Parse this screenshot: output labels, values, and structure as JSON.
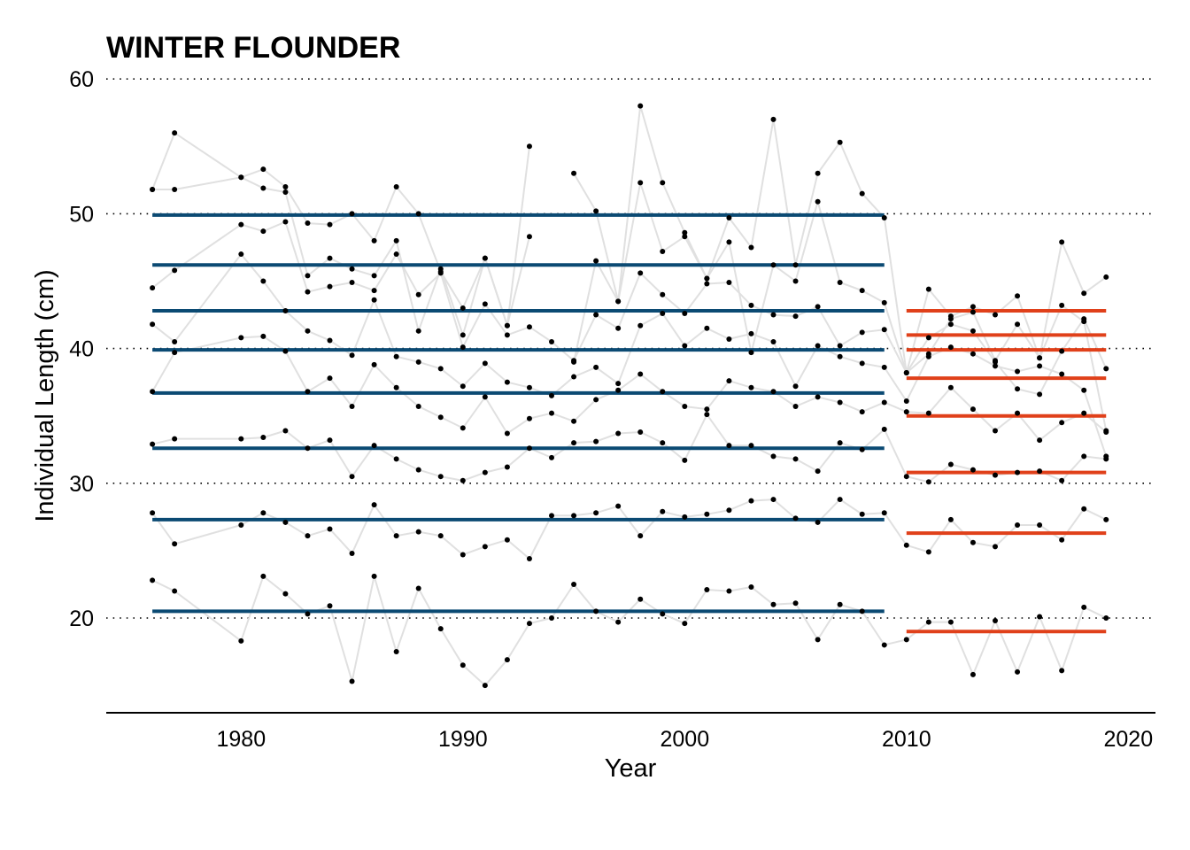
{
  "chart_data": {
    "type": "line",
    "title": "WINTER FLOUNDER",
    "xlabel": "Year",
    "ylabel": "Individual Length (cm)",
    "xlim": [
      1974,
      2021
    ],
    "ylim": [
      13,
      60
    ],
    "x_ticks": [
      1980,
      1990,
      2000,
      2010,
      2020
    ],
    "y_ticks": [
      20,
      30,
      40,
      50,
      60
    ],
    "grid": "horizontal dotted at y ticks",
    "colors": {
      "line": "#e0e0e0",
      "point": "#000000",
      "period1_mean": "#0b4a73",
      "period2_mean": "#e0401a",
      "grid": "#000000"
    },
    "series": [
      {
        "x": [
          1976,
          1977,
          1980,
          1981,
          1982,
          1983,
          1984,
          1985,
          1986,
          1987,
          1988,
          1989,
          1990,
          1991,
          1992,
          1993,
          1994,
          1995,
          1996,
          1997,
          1998,
          1999,
          2000,
          2001,
          2002,
          2003,
          2004,
          2005,
          2006,
          2007,
          2008,
          2009,
          2010,
          2011,
          2012,
          2013,
          2014,
          2015,
          2016,
          2017,
          2018,
          2019
        ],
        "y": [
          22.8,
          22.0,
          18.3,
          23.1,
          21.8,
          20.3,
          20.9,
          15.3,
          23.1,
          17.5,
          22.2,
          19.2,
          16.5,
          15.0,
          16.9,
          19.6,
          20.0,
          22.5,
          20.5,
          19.7,
          21.4,
          20.3,
          19.6,
          22.1,
          22.0,
          22.3,
          21.0,
          21.1,
          18.4,
          21.0,
          20.5,
          18.0,
          18.4,
          19.7,
          19.7,
          15.8,
          19.8,
          16.0,
          20.1,
          16.1,
          20.8,
          20.0
        ]
      },
      {
        "x": [
          1976,
          1977,
          1980,
          1981,
          1982,
          1983,
          1984,
          1985,
          1986,
          1987,
          1988,
          1989,
          1990,
          1991,
          1992,
          1993,
          1994,
          1995,
          1996,
          1997,
          1998,
          1999,
          2000,
          2001,
          2002,
          2003,
          2004,
          2005,
          2006,
          2007,
          2008,
          2009,
          2010,
          2011,
          2012,
          2013,
          2014,
          2015,
          2016,
          2017,
          2018,
          2019
        ],
        "y": [
          27.8,
          25.5,
          26.9,
          27.8,
          27.1,
          26.1,
          26.6,
          24.8,
          28.4,
          26.1,
          26.4,
          26.1,
          24.7,
          25.3,
          25.8,
          24.4,
          27.6,
          27.6,
          27.8,
          28.3,
          26.1,
          27.9,
          27.5,
          27.7,
          28.0,
          28.7,
          28.8,
          27.4,
          27.1,
          28.8,
          27.7,
          27.8,
          25.4,
          24.9,
          27.3,
          25.6,
          25.3,
          26.9,
          26.9,
          25.8,
          28.1,
          27.3
        ]
      },
      {
        "x": [
          1976,
          1977,
          1980,
          1981,
          1982,
          1983,
          1984,
          1985,
          1986,
          1987,
          1988,
          1989,
          1990,
          1991,
          1992,
          1993,
          1994,
          1995,
          1996,
          1997,
          1998,
          1999,
          2000,
          2001,
          2002,
          2003,
          2004,
          2005,
          2006,
          2007,
          2008,
          2009,
          2010,
          2011,
          2012,
          2013,
          2014,
          2015,
          2016,
          2017,
          2018,
          2019
        ],
        "y": [
          32.9,
          33.3,
          33.3,
          33.4,
          33.9,
          32.6,
          33.2,
          30.5,
          32.8,
          31.8,
          31.0,
          30.5,
          30.2,
          30.8,
          31.2,
          32.6,
          31.9,
          33.0,
          33.1,
          33.7,
          33.8,
          33.0,
          31.7,
          35.1,
          32.8,
          32.8,
          32.0,
          31.8,
          30.9,
          33.0,
          32.5,
          34.0,
          30.5,
          30.1,
          31.4,
          31.0,
          30.6,
          30.8,
          30.9,
          30.2,
          32.0,
          31.8
        ]
      },
      {
        "x": [
          1976,
          1977,
          1980,
          1981,
          1982,
          1983,
          1984,
          1985,
          1986,
          1987,
          1988,
          1989,
          1990,
          1991,
          1992,
          1993,
          1994,
          1995,
          1996,
          1997,
          1998,
          1999,
          2000,
          2001,
          2002,
          2003,
          2004,
          2005,
          2006,
          2007,
          2008,
          2009,
          2010,
          2011,
          2012,
          2013,
          2014,
          2015,
          2016,
          2017,
          2018,
          2019
        ],
        "y": [
          36.8,
          39.7,
          40.8,
          40.9,
          39.8,
          36.8,
          37.8,
          35.7,
          38.8,
          37.1,
          35.7,
          34.9,
          34.1,
          36.4,
          33.7,
          34.8,
          35.2,
          34.6,
          36.2,
          36.9,
          38.1,
          36.8,
          35.7,
          35.5,
          37.6,
          37.1,
          36.8,
          35.7,
          36.4,
          36.0,
          35.3,
          36.0,
          35.3,
          35.2,
          37.1,
          35.5,
          33.9,
          35.2,
          33.2,
          34.5,
          35.2,
          33.8
        ]
      },
      {
        "x": [
          1976,
          1977,
          1980,
          1981,
          1982,
          1983,
          1984,
          1985,
          1986,
          1987,
          1988,
          1989,
          1990,
          1991,
          1992,
          1993,
          1994,
          1995,
          1996,
          1997,
          1998,
          1999,
          2000,
          2001,
          2002,
          2003,
          2004,
          2005,
          2006,
          2007,
          2008,
          2009,
          2010,
          2011,
          2012,
          2013,
          2014,
          2015,
          2016,
          2017,
          2018,
          2019
        ],
        "y": [
          41.8,
          40.5,
          47.0,
          45.0,
          42.8,
          41.3,
          40.6,
          39.5,
          43.6,
          39.4,
          39.0,
          38.5,
          37.2,
          38.9,
          37.5,
          37.1,
          36.5,
          37.9,
          38.6,
          37.4,
          41.7,
          42.6,
          40.2,
          41.5,
          40.7,
          41.1,
          40.5,
          37.2,
          40.2,
          39.4,
          38.9,
          38.6,
          36.1,
          39.4,
          40.1,
          39.6,
          38.7,
          38.3,
          38.7,
          38.1,
          36.9,
          32.0
        ]
      },
      {
        "x": [
          1976,
          1977,
          1980,
          1981,
          1982,
          1983,
          1984,
          1985,
          1986,
          1987,
          1988,
          1989,
          1990,
          1991,
          1992,
          1993,
          1994,
          1995,
          1996,
          1997,
          1998,
          1999,
          2000,
          2001,
          2002,
          2003,
          2004,
          2005,
          2006,
          2007,
          2008,
          2009,
          2010,
          2011,
          2012,
          2013,
          2014,
          2015,
          2016,
          2017,
          2018,
          2019
        ],
        "y": [
          44.5,
          45.8,
          49.2,
          48.7,
          49.4,
          44.2,
          44.6,
          44.9,
          44.3,
          47.0,
          44.0,
          45.6,
          40.1,
          43.3,
          41.0,
          41.6,
          40.5,
          39.1,
          42.5,
          41.5,
          45.6,
          44.0,
          42.6,
          44.8,
          44.9,
          43.2,
          42.5,
          42.4,
          43.1,
          40.2,
          41.2,
          41.4,
          38.2,
          40.8,
          41.8,
          41.3,
          39.0,
          37.0,
          36.6,
          39.8,
          42.2,
          38.5
        ]
      },
      {
        "x": [
          1976,
          1977,
          1980,
          1981,
          1982,
          1983,
          1984,
          1985,
          1986,
          1987,
          1988,
          1989,
          1990,
          1991,
          1992,
          1993,
          1994,
          1995,
          1996,
          1997,
          1998,
          1999,
          2000,
          2001,
          2002,
          2003,
          2004,
          2005,
          2006,
          2007,
          2008,
          2009,
          2010,
          2011,
          2012,
          2013,
          2014,
          2015,
          2016,
          2017,
          2018,
          2019
        ],
        "y": [
          51.8,
          51.8,
          52.7,
          51.9,
          51.6,
          45.4,
          46.7,
          45.9,
          45.4,
          48.0,
          41.3,
          45.9,
          41.0,
          46.7,
          41.7,
          48.3,
          null,
          39.0,
          46.5,
          43.5,
          52.3,
          47.2,
          48.3,
          45.2,
          47.9,
          39.7,
          46.2,
          45.0,
          50.9,
          44.9,
          44.3,
          43.4,
          38.2,
          39.6,
          42.2,
          42.7,
          39.1,
          41.8,
          39.3,
          43.2,
          42.0,
          33.9
        ]
      },
      {
        "x": [
          1976,
          1977,
          1980,
          1981,
          1982,
          1983,
          1984,
          1985,
          1986,
          1987,
          1988,
          1989,
          1990,
          1991,
          1992,
          1993,
          1994,
          1995,
          1996,
          1997,
          1998,
          1999,
          2000,
          2001,
          2002,
          2003,
          2004,
          2005,
          2006,
          2007,
          2008,
          2009,
          2010,
          2011,
          2012,
          2013,
          2014,
          2015,
          2016,
          2017,
          2018,
          2019
        ],
        "y": [
          51.8,
          56.0,
          52.7,
          53.3,
          52.0,
          49.3,
          49.2,
          50.0,
          48.0,
          52.0,
          50.0,
          45.7,
          43.0,
          46.7,
          41.7,
          55.0,
          null,
          53.0,
          50.2,
          43.5,
          58.0,
          52.3,
          48.6,
          45.2,
          49.7,
          47.5,
          57.0,
          46.2,
          53.0,
          55.3,
          51.5,
          49.7,
          38.2,
          44.4,
          42.4,
          43.1,
          42.5,
          43.9,
          39.3,
          47.9,
          44.1,
          45.3
        ]
      }
    ],
    "means": [
      {
        "name": "",
        "start": 1976,
        "end": 2009,
        "values": [
          49.9,
          46.2,
          42.8,
          39.9,
          36.7,
          32.6,
          27.3,
          20.5
        ]
      },
      {
        "name": "",
        "start": 2010,
        "end": 2019,
        "values": [
          42.8,
          41.0,
          39.9,
          37.8,
          35.0,
          30.8,
          26.3,
          19.0
        ]
      }
    ]
  }
}
